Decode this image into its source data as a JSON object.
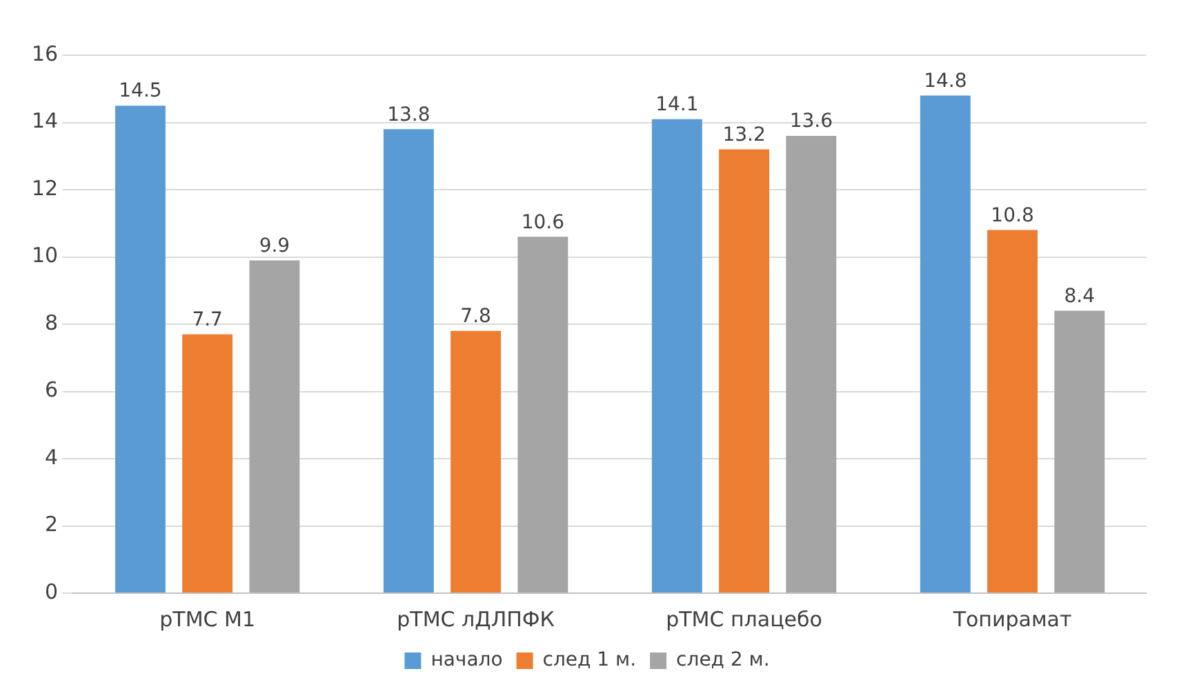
{
  "chart_data": {
    "type": "bar",
    "categories": [
      "рТМС М1",
      "рТМС лДЛПФК",
      "рТМС плацебо",
      "Топирамат"
    ],
    "series": [
      {
        "name": "начало",
        "color": "#5b9bd5",
        "values": [
          14.5,
          13.8,
          14.1,
          14.8
        ]
      },
      {
        "name": "след 1 м.",
        "color": "#ed7d31",
        "values": [
          7.7,
          7.8,
          13.2,
          10.8
        ]
      },
      {
        "name": "след 2 м.",
        "color": "#a5a5a5",
        "values": [
          9.9,
          10.6,
          13.6,
          8.4
        ]
      }
    ],
    "ylim": [
      0,
      16
    ],
    "yticks": [
      0,
      2,
      4,
      6,
      8,
      10,
      12,
      14,
      16
    ],
    "grid": "y",
    "legend": "bottom",
    "data_labels": true
  }
}
